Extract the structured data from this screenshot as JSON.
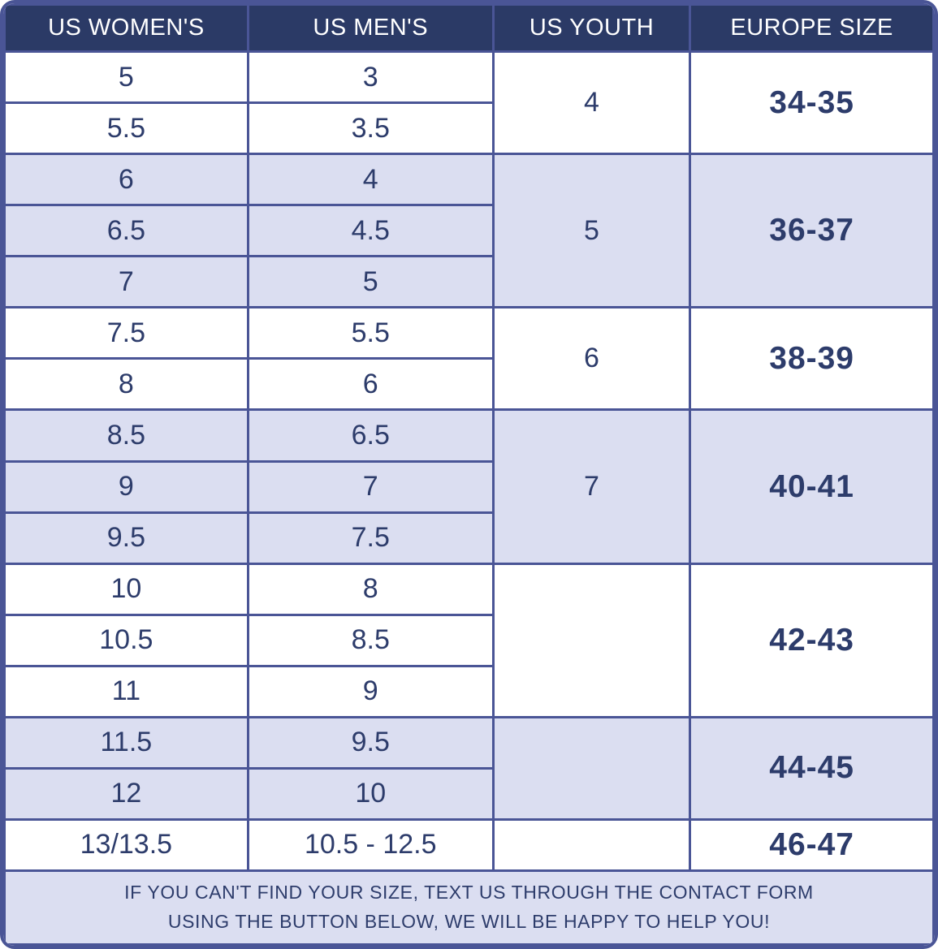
{
  "colors": {
    "border": "#4a5596",
    "header_bg": "#2b3a66",
    "header_text": "#ffffff",
    "cell_text": "#2d3c6b",
    "alt_row_bg": "#dbdef1",
    "row_bg": "#ffffff",
    "footer_bg": "#dbdef1"
  },
  "table": {
    "headers": [
      "US WOMEN'S",
      "US MEN'S",
      "US YOUTH",
      "EUROPE SIZE"
    ],
    "groups": [
      {
        "shade": "white",
        "rows": [
          {
            "women": "5",
            "men": "3"
          },
          {
            "women": "5.5",
            "men": "3.5"
          }
        ],
        "youth": "4",
        "europe": "34-35"
      },
      {
        "shade": "alt",
        "rows": [
          {
            "women": "6",
            "men": "4"
          },
          {
            "women": "6.5",
            "men": "4.5"
          },
          {
            "women": "7",
            "men": "5"
          }
        ],
        "youth": "5",
        "europe": "36-37"
      },
      {
        "shade": "white",
        "rows": [
          {
            "women": "7.5",
            "men": "5.5"
          },
          {
            "women": "8",
            "men": "6"
          }
        ],
        "youth": "6",
        "europe": "38-39"
      },
      {
        "shade": "alt",
        "rows": [
          {
            "women": "8.5",
            "men": "6.5"
          },
          {
            "women": "9",
            "men": "7"
          },
          {
            "women": "9.5",
            "men": "7.5"
          }
        ],
        "youth": "7",
        "europe": "40-41"
      },
      {
        "shade": "white",
        "rows": [
          {
            "women": "10",
            "men": "8"
          },
          {
            "women": "10.5",
            "men": "8.5"
          },
          {
            "women": "11",
            "men": "9"
          }
        ],
        "youth": "",
        "europe": "42-43"
      },
      {
        "shade": "alt",
        "rows": [
          {
            "women": "11.5",
            "men": "9.5"
          },
          {
            "women": "12",
            "men": "10"
          }
        ],
        "youth": "",
        "europe": "44-45"
      },
      {
        "shade": "white",
        "rows": [
          {
            "women": "13/13.5",
            "men": "10.5 - 12.5"
          }
        ],
        "youth": "",
        "europe": "46-47"
      }
    ],
    "footer": {
      "line1": "IF YOU CAN'T FIND YOUR SIZE, TEXT US THROUGH THE CONTACT FORM",
      "line2": "USING THE BUTTON BELOW, WE WILL BE HAPPY TO HELP YOU!"
    }
  },
  "chart_data": {
    "type": "table",
    "title": "Shoe size conversion chart",
    "columns": [
      "US WOMEN'S",
      "US MEN'S",
      "US YOUTH",
      "EUROPE SIZE"
    ],
    "rows": [
      [
        "5",
        "3",
        "4",
        "34-35"
      ],
      [
        "5.5",
        "3.5",
        "4",
        "34-35"
      ],
      [
        "6",
        "4",
        "5",
        "36-37"
      ],
      [
        "6.5",
        "4.5",
        "5",
        "36-37"
      ],
      [
        "7",
        "5",
        "5",
        "36-37"
      ],
      [
        "7.5",
        "5.5",
        "6",
        "38-39"
      ],
      [
        "8",
        "6",
        "6",
        "38-39"
      ],
      [
        "8.5",
        "6.5",
        "7",
        "40-41"
      ],
      [
        "9",
        "7",
        "7",
        "40-41"
      ],
      [
        "9.5",
        "7.5",
        "7",
        "40-41"
      ],
      [
        "10",
        "8",
        "",
        "42-43"
      ],
      [
        "10.5",
        "8.5",
        "",
        "42-43"
      ],
      [
        "11",
        "9",
        "",
        "42-43"
      ],
      [
        "11.5",
        "9.5",
        "",
        "44-45"
      ],
      [
        "12",
        "10",
        "",
        "44-45"
      ],
      [
        "13/13.5",
        "10.5 - 12.5",
        "",
        "46-47"
      ]
    ],
    "notes": "US YOUTH and EUROPE SIZE cells are merged (rowspan) across each group of rows; row groups alternate white and lavender backgrounds"
  }
}
